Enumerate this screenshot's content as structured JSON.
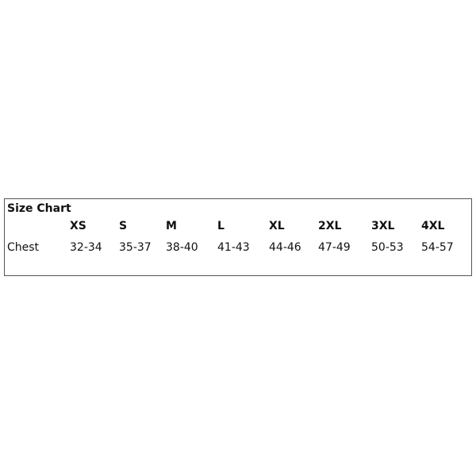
{
  "title": "Size Chart",
  "sizes": [
    "XS",
    "S",
    "M",
    "L",
    "XL",
    "2XL",
    "3XL",
    "4XL"
  ],
  "rows": [
    {
      "label": "Chest",
      "values": [
        "32-34",
        "35-37",
        "38-40",
        "41-43",
        "44-46",
        "47-49",
        "50-53",
        "54-57"
      ]
    }
  ]
}
